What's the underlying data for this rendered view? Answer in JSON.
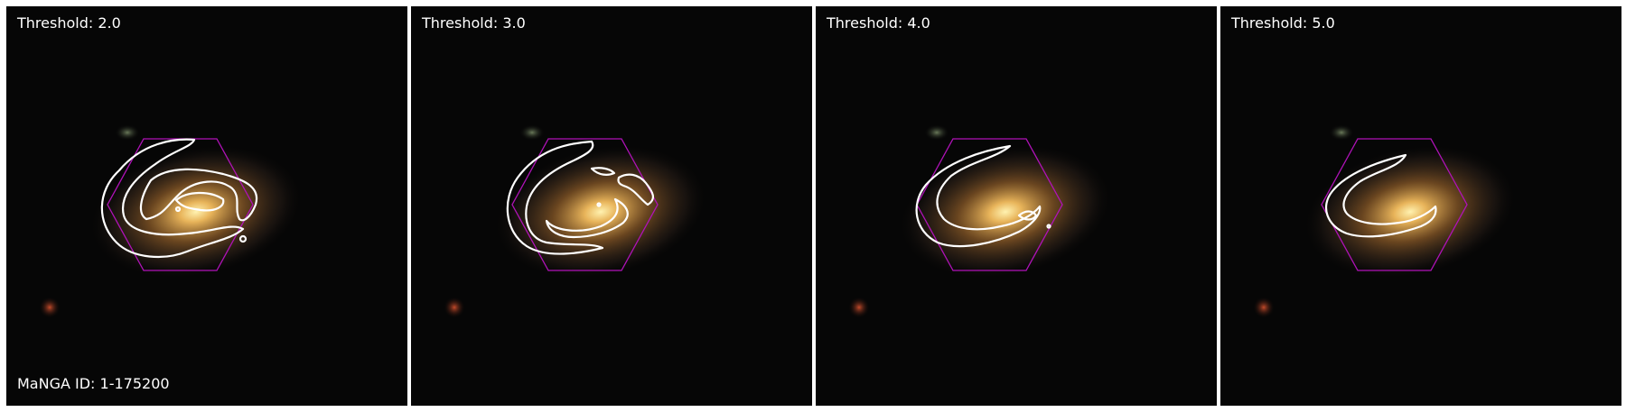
{
  "panels": [
    {
      "threshold_label": "Threshold: 2.0"
    },
    {
      "threshold_label": "Threshold: 3.0"
    },
    {
      "threshold_label": "Threshold: 4.0"
    },
    {
      "threshold_label": "Threshold: 5.0"
    }
  ],
  "manga_id_label": "MaNGA ID: 1-175200",
  "colors": {
    "background": "#060606",
    "contour": "#ffffff",
    "ifu_hexagon": "#b012b8",
    "galaxy_core": "#fff2b0",
    "galaxy_halo": "#c8863a"
  },
  "icons": [
    "galaxy-image",
    "spiral-arm-contour",
    "ifu-hexagon"
  ]
}
